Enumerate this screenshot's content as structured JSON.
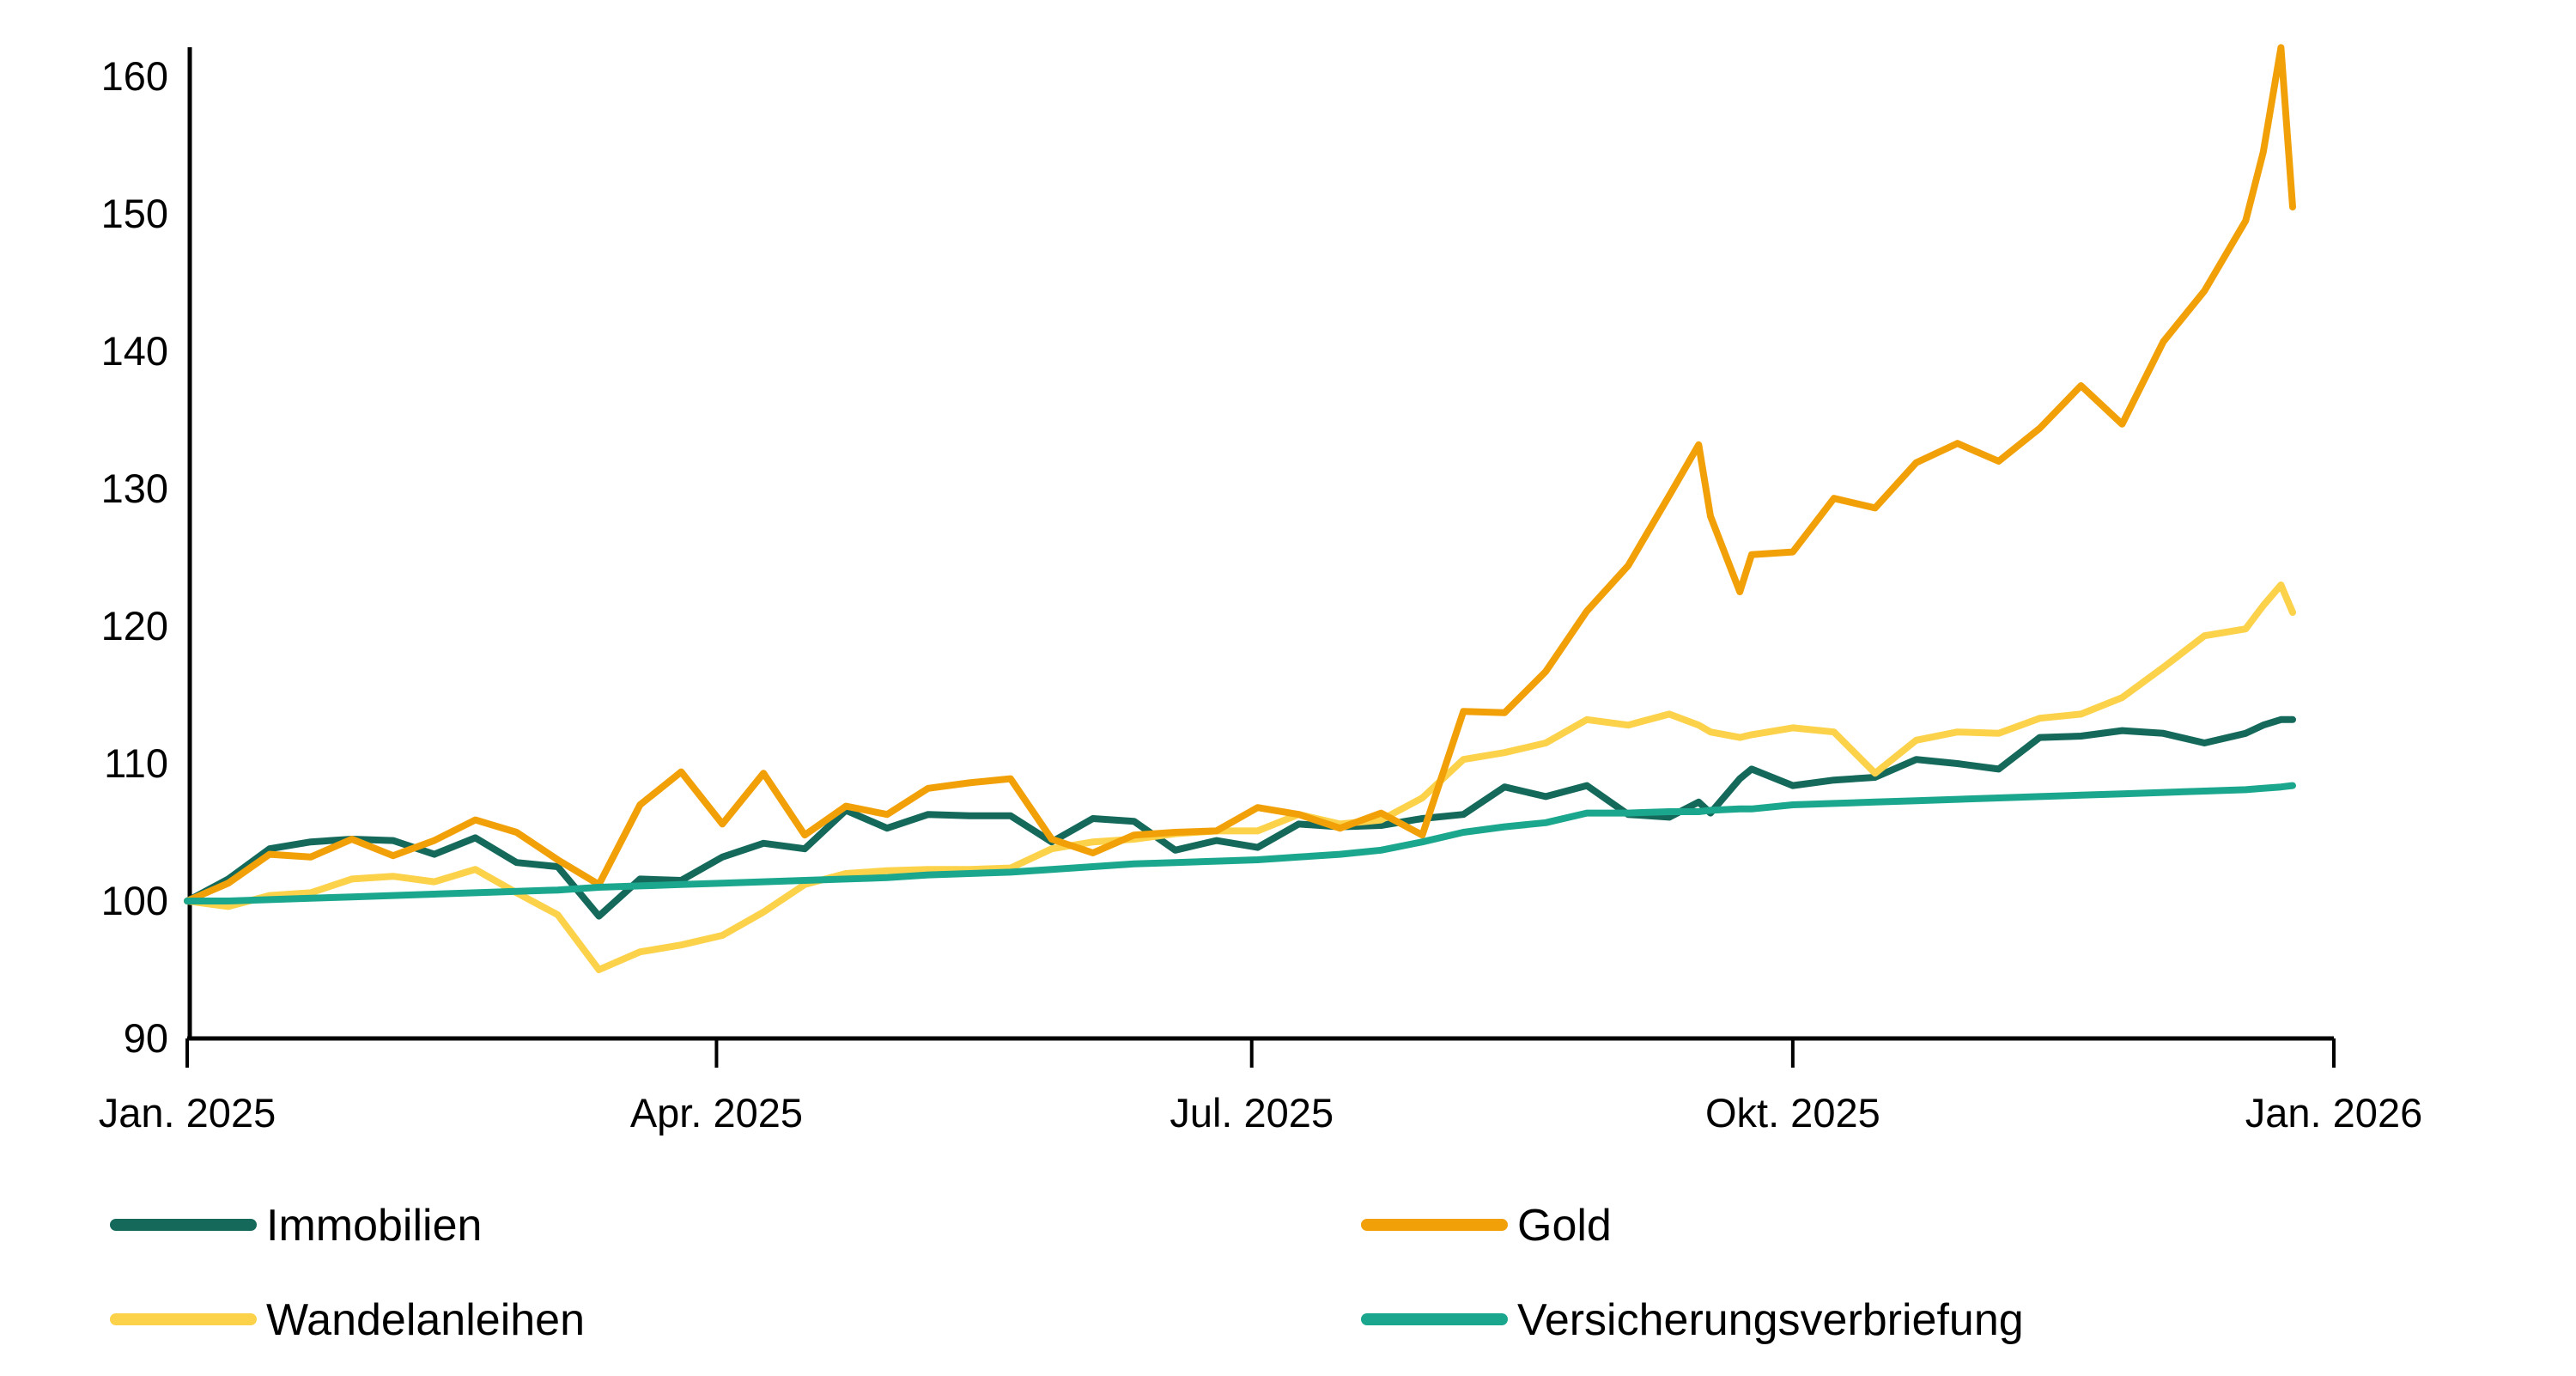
{
  "chart_data": {
    "type": "line",
    "title": "",
    "xlabel": "",
    "ylabel": "",
    "grid": false,
    "legend_position": "bottom",
    "y_axis": {
      "ticks": [
        90,
        100,
        110,
        120,
        130,
        140,
        150,
        160
      ],
      "range": [
        90,
        160
      ]
    },
    "x_axis": {
      "tick_labels": [
        "Jan. 2025",
        "Apr. 2025",
        "Jul. 2025",
        "Okt. 2025",
        "Jan. 2026"
      ],
      "tick_days": [
        0,
        90,
        181,
        273,
        365
      ],
      "range_days": [
        0,
        365
      ]
    },
    "days": [
      0,
      7,
      14,
      21,
      28,
      35,
      42,
      49,
      56,
      63,
      70,
      77,
      84,
      91,
      98,
      105,
      112,
      119,
      126,
      133,
      140,
      147,
      154,
      161,
      168,
      175,
      182,
      189,
      196,
      203,
      210,
      217,
      224,
      231,
      238,
      245,
      252,
      257,
      259,
      264,
      266,
      273,
      280,
      287,
      294,
      301,
      308,
      315,
      322,
      329,
      336,
      343,
      350,
      353,
      356,
      358
    ],
    "series": [
      {
        "name": "Immobilien",
        "color": "#15695B",
        "values": [
          100.0,
          101.6,
          103.8,
          104.3,
          104.5,
          104.4,
          103.4,
          104.6,
          102.8,
          102.5,
          98.9,
          101.6,
          101.5,
          103.2,
          104.2,
          103.8,
          106.6,
          105.3,
          106.3,
          106.2,
          106.2,
          104.3,
          106.0,
          105.8,
          103.7,
          104.4,
          103.9,
          105.6,
          105.4,
          105.5,
          106.0,
          106.3,
          108.3,
          107.6,
          108.4,
          106.3,
          106.1,
          107.2,
          106.4,
          108.9,
          109.6,
          108.4,
          108.8,
          109.0,
          110.3,
          110.0,
          109.6,
          111.9,
          112.0,
          112.4,
          112.2,
          111.5,
          112.2,
          112.8,
          113.2,
          113.2
        ]
      },
      {
        "name": "Wandelanleihen",
        "color": "#FCD24B",
        "values": [
          100.0,
          99.6,
          100.4,
          100.6,
          101.6,
          101.8,
          101.4,
          102.3,
          100.6,
          99.0,
          95.0,
          96.3,
          96.8,
          97.5,
          99.2,
          101.2,
          102.0,
          102.2,
          102.3,
          102.3,
          102.4,
          103.8,
          104.3,
          104.5,
          104.9,
          105.1,
          105.1,
          106.3,
          105.6,
          105.9,
          107.5,
          110.3,
          110.8,
          111.5,
          113.2,
          112.8,
          113.6,
          112.8,
          112.3,
          111.9,
          112.1,
          112.6,
          112.3,
          109.3,
          111.7,
          112.3,
          112.2,
          113.3,
          113.6,
          114.8,
          117.0,
          119.3,
          119.8,
          121.5,
          123.0,
          121.0
        ]
      },
      {
        "name": "Gold",
        "color": "#F2A007",
        "values": [
          100.0,
          101.3,
          103.4,
          103.2,
          104.5,
          103.3,
          104.4,
          105.9,
          105.0,
          103.0,
          101.2,
          107.0,
          109.4,
          105.6,
          109.3,
          104.8,
          106.9,
          106.3,
          108.2,
          108.6,
          108.9,
          104.5,
          103.5,
          104.8,
          105.0,
          105.1,
          106.8,
          106.3,
          105.3,
          106.4,
          104.8,
          113.8,
          113.7,
          116.7,
          121.1,
          124.4,
          129.5,
          133.2,
          128.0,
          122.5,
          125.2,
          125.4,
          129.3,
          128.6,
          131.9,
          133.3,
          132.0,
          134.4,
          137.5,
          134.7,
          140.7,
          144.4,
          149.5,
          154.5,
          162.1,
          150.5
        ]
      },
      {
        "name": "Versicherungsverbriefung",
        "color": "#1BA78D",
        "values": [
          100.0,
          100.0,
          100.1,
          100.2,
          100.3,
          100.4,
          100.5,
          100.6,
          100.7,
          100.8,
          101.0,
          101.1,
          101.2,
          101.3,
          101.4,
          101.5,
          101.6,
          101.7,
          101.9,
          102.0,
          102.1,
          102.3,
          102.5,
          102.7,
          102.8,
          102.9,
          103.0,
          103.2,
          103.4,
          103.7,
          104.3,
          105.0,
          105.4,
          105.7,
          106.4,
          106.4,
          106.5,
          106.5,
          106.6,
          106.7,
          106.7,
          107.0,
          107.1,
          107.2,
          107.3,
          107.4,
          107.5,
          107.6,
          107.7,
          107.8,
          107.9,
          108.0,
          108.1,
          108.2,
          108.3,
          108.4
        ]
      }
    ]
  }
}
